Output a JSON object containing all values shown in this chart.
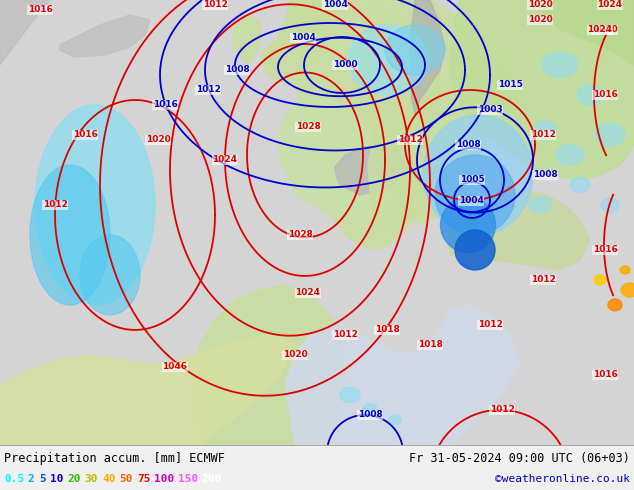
{
  "title_left": "Precipitation accum. [mm] ECMWF",
  "title_right": "Fr 31-05-2024 09:00 UTC (06+03)",
  "credit": "©weatheronline.co.uk",
  "legend_values": [
    "0.5",
    "2",
    "5",
    "10",
    "20",
    "30",
    "40",
    "50",
    "75",
    "100",
    "150",
    "200"
  ],
  "legend_colors": [
    "#00ffff",
    "#00aaff",
    "#0055ff",
    "#0000dd",
    "#33bb00",
    "#bbbb00",
    "#ffaa00",
    "#ff6600",
    "#ff0000",
    "#cc00cc",
    "#ff55ff",
    "#ffffff"
  ],
  "fig_width": 6.34,
  "fig_height": 4.9,
  "dpi": 100,
  "map_bg": "#d8d8d8",
  "land_color": "#c8e0b0",
  "sea_color": "#d0d0d0",
  "bottom_bg": "#f0f0f0",
  "text_color": "#000000",
  "credit_color": "#0000cc",
  "isobar_red": "#dd0000",
  "isobar_blue": "#0000cc",
  "isobar_lw": 1.3,
  "label_fs": 6.5
}
